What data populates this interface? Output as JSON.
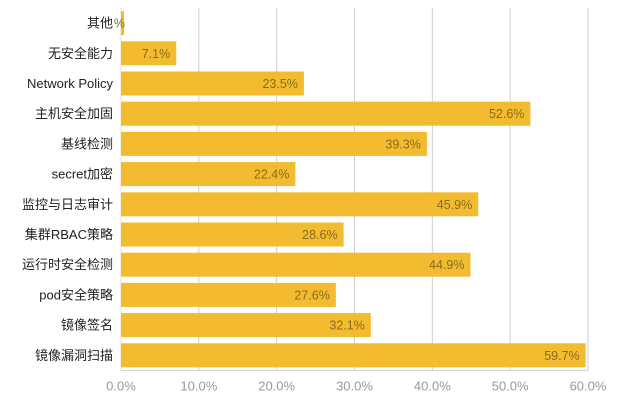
{
  "chart_data": {
    "type": "bar",
    "orientation": "horizontal",
    "categories": [
      "其他",
      "无安全能力",
      "Network Policy",
      "主机安全加固",
      "基线检测",
      "secret加密",
      "监控与日志审计",
      "集群RBAC策略",
      "运行时安全检测",
      "pod安全策略",
      "镜像签名",
      "镜像漏洞扫描"
    ],
    "values": [
      0.4,
      7.1,
      23.5,
      52.6,
      39.3,
      22.4,
      45.9,
      28.6,
      44.9,
      27.6,
      32.1,
      59.7
    ],
    "value_labels": [
      "%",
      "7.1%",
      "23.5%",
      "52.6%",
      "39.3%",
      "22.4%",
      "45.9%",
      "28.6%",
      "44.9%",
      "27.6%",
      "32.1%",
      "59.7%"
    ],
    "xlim": [
      0,
      60
    ],
    "xticks": [
      "0.0%",
      "10.0%",
      "20.0%",
      "30.0%",
      "40.0%",
      "50.0%",
      "60.0%"
    ],
    "grid": true,
    "bar_color": "#f2bb30",
    "title": "",
    "xlabel": "",
    "ylabel": ""
  }
}
